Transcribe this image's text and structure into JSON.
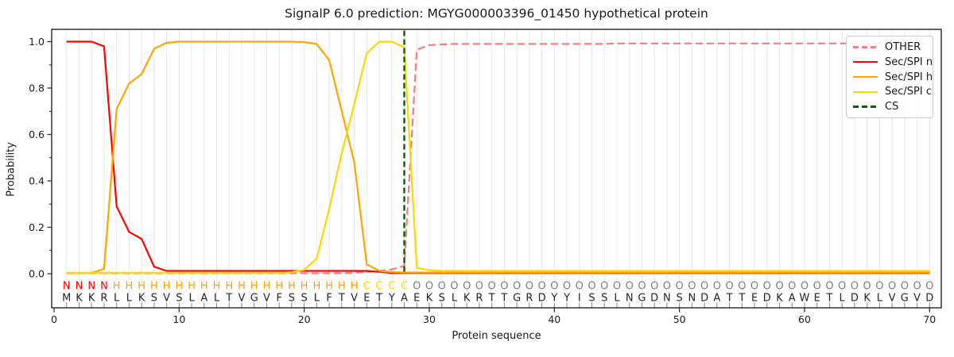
{
  "title": "SignalP 6.0 prediction: MGYG000003396_01450 hypothetical protein",
  "axes": {
    "xlabel": "Protein sequence",
    "ylabel": "Probability",
    "x_ticks": [
      0,
      10,
      20,
      30,
      40,
      50,
      60,
      70
    ],
    "y_ticks": [
      1.0,
      0.8,
      0.6,
      0.4,
      0.2,
      0.0
    ],
    "y_tick_labels": [
      "1.0",
      "0.8",
      "0.6",
      "0.4",
      "0.2",
      "0.0"
    ],
    "y_minor_ticks": [
      0.9,
      0.7,
      0.5,
      0.3,
      0.1
    ]
  },
  "legend": {
    "items": [
      {
        "label": "OTHER",
        "color": "#f08080",
        "style": "dashed"
      },
      {
        "label": "Sec/SPI n",
        "color": "#ff0000",
        "style": "solid"
      },
      {
        "label": "Sec/SPI h",
        "color": "#ffa500",
        "style": "solid"
      },
      {
        "label": "Sec/SPI c",
        "color": "#ffd700",
        "style": "solid"
      },
      {
        "label": "CS",
        "color": "#006400",
        "style": "dashed"
      }
    ]
  },
  "sequence": {
    "residues": "MKKRLLKSVSLALTVGVFSSLFTVETYAEKSLKRTTGRDYYISSLNGDNSNDATTEDKAWETLDKLVGVD",
    "regions": "NNNNHHHHHHHHHHHHHHHHHHHHCCCCOOOOOOOOOOOOOOOOOOOOOOOOOOOOOOOOOOOOOOOOOO",
    "region_colors": {
      "N": "#ff0000",
      "H": "#ffa500",
      "C": "#ffd700",
      "O": "#808080"
    },
    "residue_color": "#262626"
  },
  "chart_data": {
    "type": "line",
    "x_start": 1,
    "n_points": 70,
    "xlim": [
      -0.2,
      71.0
    ],
    "ylim": [
      0.0,
      1.05
    ],
    "grid": "vertical, one line per residue, light gray",
    "legend_position": "upper right",
    "series": [
      {
        "name": "OTHER",
        "color": "#f08080",
        "style": "dashed",
        "values": [
          0.002,
          0.002,
          0.002,
          0.002,
          0.002,
          0.002,
          0.002,
          0.002,
          0.002,
          0.002,
          0.002,
          0.002,
          0.002,
          0.002,
          0.002,
          0.002,
          0.002,
          0.002,
          0.002,
          0.002,
          0.002,
          0.002,
          0.002,
          0.004,
          0.008,
          0.012,
          0.018,
          0.034,
          0.965,
          0.985,
          0.988,
          0.99,
          0.99,
          0.99,
          0.99,
          0.99,
          0.99,
          0.99,
          0.99,
          0.99,
          0.99,
          0.99,
          0.99,
          0.99,
          0.992,
          0.992,
          0.992,
          0.992,
          0.992,
          0.992,
          0.992,
          0.992,
          0.992,
          0.992,
          0.992,
          0.992,
          0.992,
          0.992,
          0.992,
          0.992,
          0.992,
          0.992,
          0.992,
          0.992,
          0.992,
          0.992,
          0.992,
          0.992,
          0.992,
          0.992
        ]
      },
      {
        "name": "Sec/SPI n",
        "color": "#ff0000",
        "style": "solid",
        "values": [
          1.0,
          1.0,
          1.0,
          0.98,
          0.29,
          0.18,
          0.15,
          0.03,
          0.012,
          0.012,
          0.012,
          0.012,
          0.012,
          0.012,
          0.012,
          0.012,
          0.012,
          0.012,
          0.012,
          0.012,
          0.012,
          0.012,
          0.012,
          0.012,
          0.012,
          0.008,
          0.003,
          0.003,
          0.003,
          0.003,
          0.003,
          0.003,
          0.003,
          0.003,
          0.003,
          0.003,
          0.003,
          0.003,
          0.003,
          0.003,
          0.003,
          0.003,
          0.003,
          0.003,
          0.003,
          0.003,
          0.003,
          0.003,
          0.003,
          0.003,
          0.003,
          0.003,
          0.003,
          0.003,
          0.003,
          0.003,
          0.003,
          0.003,
          0.003,
          0.003,
          0.003,
          0.003,
          0.003,
          0.003,
          0.003,
          0.003,
          0.003,
          0.003,
          0.003,
          0.003
        ]
      },
      {
        "name": "Sec/SPI h",
        "color": "#ffa500",
        "style": "solid",
        "values": [
          0.003,
          0.003,
          0.004,
          0.02,
          0.71,
          0.82,
          0.86,
          0.97,
          0.995,
          1.0,
          1.0,
          1.0,
          1.0,
          1.0,
          1.0,
          1.0,
          1.0,
          1.0,
          1.0,
          0.998,
          0.99,
          0.92,
          0.7,
          0.48,
          0.04,
          0.012,
          0.007,
          0.005,
          0.005,
          0.005,
          0.005,
          0.005,
          0.005,
          0.005,
          0.005,
          0.005,
          0.005,
          0.005,
          0.005,
          0.005,
          0.005,
          0.005,
          0.005,
          0.005,
          0.005,
          0.005,
          0.005,
          0.005,
          0.005,
          0.005,
          0.005,
          0.005,
          0.005,
          0.005,
          0.005,
          0.005,
          0.005,
          0.005,
          0.005,
          0.005,
          0.005,
          0.005,
          0.005,
          0.005,
          0.005,
          0.005,
          0.005,
          0.005,
          0.005,
          0.005
        ]
      },
      {
        "name": "Sec/SPI c",
        "color": "#ffd700",
        "style": "solid",
        "values": [
          0.004,
          0.004,
          0.004,
          0.004,
          0.004,
          0.004,
          0.004,
          0.004,
          0.004,
          0.004,
          0.004,
          0.004,
          0.004,
          0.004,
          0.004,
          0.004,
          0.004,
          0.004,
          0.006,
          0.017,
          0.065,
          0.28,
          0.52,
          0.73,
          0.95,
          1.0,
          1.0,
          0.975,
          0.025,
          0.015,
          0.012,
          0.012,
          0.012,
          0.012,
          0.012,
          0.012,
          0.012,
          0.012,
          0.012,
          0.012,
          0.012,
          0.012,
          0.012,
          0.012,
          0.012,
          0.012,
          0.012,
          0.012,
          0.012,
          0.012,
          0.012,
          0.012,
          0.012,
          0.012,
          0.012,
          0.012,
          0.012,
          0.012,
          0.012,
          0.012,
          0.012,
          0.012,
          0.012,
          0.012,
          0.012,
          0.012,
          0.012,
          0.012,
          0.012,
          0.012
        ]
      }
    ],
    "cs_marker": {
      "name": "CS",
      "x": 28,
      "color": "#006400",
      "style": "dashed-vertical"
    }
  }
}
